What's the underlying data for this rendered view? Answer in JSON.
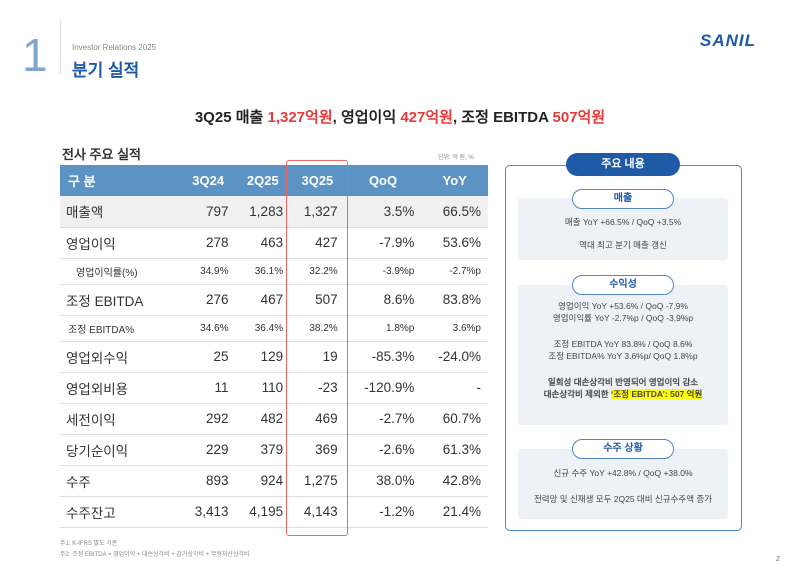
{
  "header": {
    "section_number": "1",
    "subtitle": "Investor Relations 2025",
    "title": "분기 실적",
    "logo": "SANIL"
  },
  "headline": {
    "p1": "3Q25 매출 ",
    "v1": "1,327억원",
    ",p2": "",
    "p2": ", 영업이익 ",
    "v2": "427억원",
    "p3": ", 조정 EBITDA ",
    "v3": "507억원"
  },
  "table": {
    "title": "전사 주요 실적",
    "unit": "단위: 억 원, %",
    "columns": [
      "구 분",
      "3Q24",
      "2Q25",
      "3Q25",
      "QoQ",
      "YoY"
    ],
    "rows": [
      [
        "매출액",
        "797",
        "1,283",
        "1,327",
        "3.5%",
        "66.5%"
      ],
      [
        "영업이익",
        "278",
        "463",
        "427",
        "-7.9%",
        "53.6%"
      ],
      [
        "영업이익률(%)",
        "34.9%",
        "36.1%",
        "32.2%",
        "-3.9%p",
        "-2.7%p"
      ],
      [
        "조정 EBITDA",
        "276",
        "467",
        "507",
        "8.6%",
        "83.8%"
      ],
      [
        "조정 EBITDA%",
        "34.6%",
        "36.4%",
        "38.2%",
        "1.8%p",
        "3.6%p"
      ],
      [
        "영업외수익",
        "25",
        "129",
        "19",
        "-85.3%",
        "-24.0%"
      ],
      [
        "영업외비용",
        "11",
        "110",
        "-23",
        "-120.9%",
        "-"
      ],
      [
        "세전이익",
        "292",
        "482",
        "469",
        "-2.7%",
        "60.7%"
      ],
      [
        "당기순이익",
        "229",
        "379",
        "369",
        "-2.6%",
        "61.3%"
      ],
      [
        "수주",
        "893",
        "924",
        "1,275",
        "38.0%",
        "42.8%"
      ],
      [
        "수주잔고",
        "3,413",
        "4,195",
        "4,143",
        "-1.2%",
        "21.4%"
      ]
    ],
    "notes": [
      "주1: K-IFRS 별도 기준",
      "주2: 조정 EBITDA = 영업이익 + 대손상각비 + 감가상각비 + 무형자산상각비"
    ]
  },
  "panel": {
    "title": "주요 내용",
    "sales": {
      "label": "매출",
      "lines": [
        "매출 YoY +66.5% / QoQ +3.5%",
        "역대 최고 분기 매출 갱신"
      ]
    },
    "profit": {
      "label": "수익성",
      "lines": [
        "영업이익 YoY +53.6% / QoQ -7.9%",
        "영업이익률 YoY -2.7%p  / QoQ -3.9%p",
        "조정 EBITDA YoY 83.8% / QoQ 8.6%",
        "조정 EBITDA% YoY 3.6%p/ QoQ 1.8%p",
        "일회성 대손상각비 반영되어 영업이익 감소",
        "대손상각비 제외한 "
      ],
      "highlight": "‘조정 EBITDA’: 507 억원"
    },
    "orders": {
      "label": "수주 상황",
      "lines": [
        "신규 수주 YoY +42.8% / QoQ +38.0%",
        "전력망 및 신재생 모두 2Q25 대비 신규수주액 증가"
      ]
    }
  },
  "page_number": "2"
}
